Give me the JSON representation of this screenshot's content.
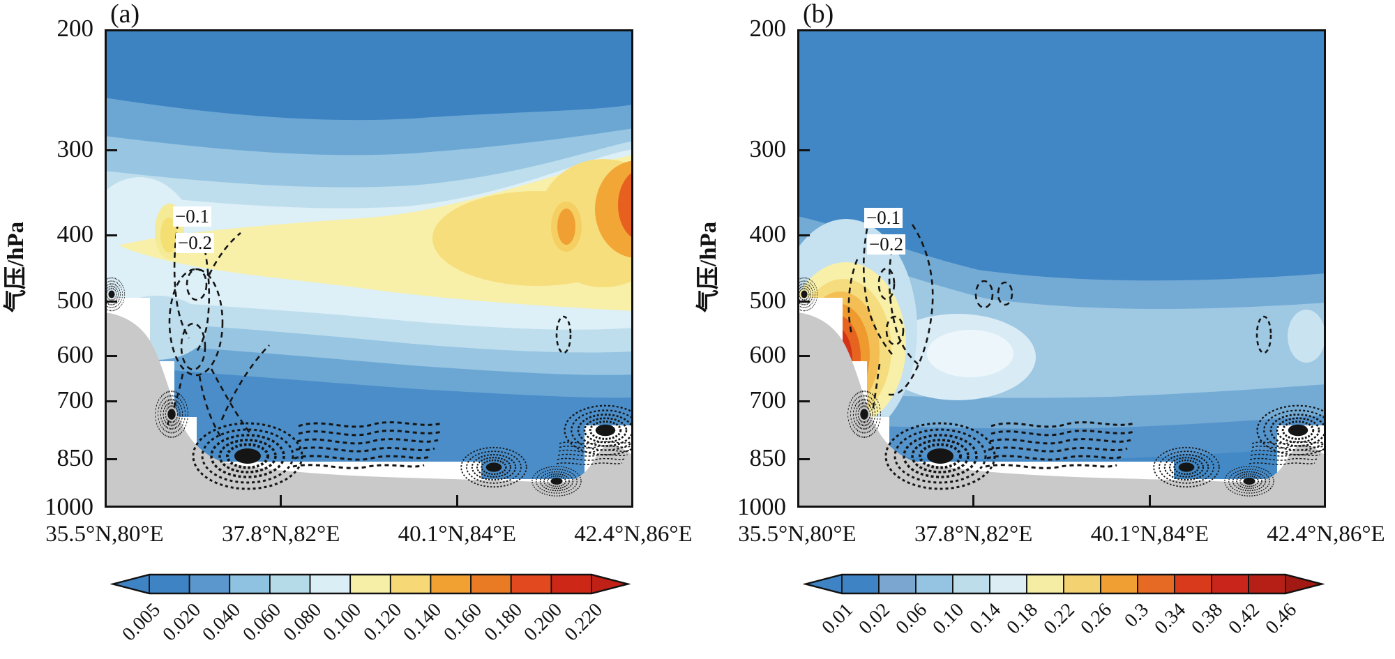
{
  "figure": {
    "type_note": "Two-panel filled-contour vertical cross-sections (pressure vs latitude/longitude) over terrain, each with a double-ended horizontal colorbar",
    "panels": [
      {
        "label": "(a)",
        "y_axis_title": "气压/hPa",
        "y_tick_labels": [
          "200",
          "300",
          "400",
          "500",
          "600",
          "700",
          "850",
          "1000"
        ],
        "x_tick_labels": [
          "35.5°N,80°E",
          "37.8°N,82°E",
          "40.1°N,84°E",
          "42.4°N,86°E"
        ],
        "contour_labels": [
          "−0.1",
          "−0.2"
        ],
        "colorbar": {
          "levels": [
            "0.005",
            "0.020",
            "0.040",
            "0.060",
            "0.080",
            "0.100",
            "0.120",
            "0.140",
            "0.160",
            "0.180",
            "0.200",
            "0.220"
          ],
          "colors": [
            "#3e83c3",
            "#5b97cd",
            "#8fc1e0",
            "#b5dbe8",
            "#daeef5",
            "#f5efa7",
            "#f6d976",
            "#f0a132",
            "#ea7b25",
            "#e2491f",
            "#cd2817"
          ],
          "arrow_left_color": "#3e83c3",
          "arrow_right_color": "#c02015"
        }
      },
      {
        "label": "(b)",
        "y_axis_title": "气压/hPa",
        "y_tick_labels": [
          "200",
          "300",
          "400",
          "500",
          "600",
          "700",
          "850",
          "1000"
        ],
        "x_tick_labels": [
          "35.5°N,80°E",
          "37.8°N,82°E",
          "40.1°N,84°E",
          "42.4°N,86°E"
        ],
        "contour_labels": [
          "−0.1",
          "−0.2"
        ],
        "colorbar": {
          "levels": [
            "0.01",
            "0.02",
            "0.06",
            "0.10",
            "0.14",
            "0.18",
            "0.22",
            "0.26",
            "0.3",
            "0.34",
            "0.38",
            "0.42",
            "0.46"
          ],
          "colors": [
            "#3e83c3",
            "#7aa6d0",
            "#94c4e1",
            "#bcdde9",
            "#dcedf4",
            "#f5eda4",
            "#f3d272",
            "#f0a032",
            "#e76a24",
            "#d93a1b",
            "#c9251a",
            "#b51f15"
          ],
          "arrow_left_color": "#3e83c3",
          "arrow_right_color": "#a21812"
        }
      }
    ]
  },
  "chart_data": [
    {
      "type": "heatmap",
      "subtype": "filled contour vertical cross-section with dashed negative contour lines",
      "title": "(a)",
      "xlabel": "",
      "ylabel": "气压/hPa",
      "y_ticks": [
        200,
        300,
        400,
        500,
        600,
        700,
        850,
        1000
      ],
      "y_scale": "log-pressure, inverted (200 hPa at top, 1000 hPa at bottom)",
      "x_tick_labels": [
        "35.5°N,80°E",
        "37.8°N,82°E",
        "40.1°N,84°E",
        "42.4°N,86°E"
      ],
      "fill_levels": [
        0.005,
        0.02,
        0.04,
        0.06,
        0.08,
        0.1,
        0.12,
        0.14,
        0.16,
        0.18,
        0.2,
        0.22
      ],
      "fill_palette": [
        "#3e83c3",
        "#5b97cd",
        "#8fc1e0",
        "#b5dbe8",
        "#daeef5",
        "#f5efa7",
        "#f6d976",
        "#f0a132",
        "#ea7b25",
        "#e2491f",
        "#cd2817"
      ],
      "colorbar_extended_both_ends": true,
      "dashed_contour_labels": [
        -0.1,
        -0.2
      ],
      "grid": false,
      "legend_position": "horizontal colorbar below panel",
      "features": [
        "Blue shading (0.005–0.04) covers most of the section; darkest blue at top (200–250 hPa) and through the lower troposphere below 500 hPa",
        "Pale-yellow band (0.08–0.12) stretches along ~300–400 hPa across the whole section",
        "Absolute maximum 0.20–0.22 (red-orange) at the right edge near 42.4°N,86°E at ~300–380 hPa",
        "Secondary orange maximum 0.14–0.16 near 41.5°N at ~350 hPa",
        "Weak local maximum ~0.10 near 36°N at ~350–400 hPa",
        "Dashed negative contours labelled −0.1 and −0.2 between ~400 and 600 hPa near 36.5°N",
        "Tightly packed dashed contours hugging terrain near 700–850 hPa around 37.5–39°N and again near 42°N",
        "Gray terrain silhouette rises to ~500 hPa at the left edge, descends to ~900 hPa mid-section, small peak near 42°N; white blocks are masked data beside terrain"
      ]
    },
    {
      "type": "heatmap",
      "subtype": "filled contour vertical cross-section with dashed negative contour lines",
      "title": "(b)",
      "xlabel": "",
      "ylabel": "气压/hPa",
      "y_ticks": [
        200,
        300,
        400,
        500,
        600,
        700,
        850,
        1000
      ],
      "y_scale": "log-pressure, inverted (200 hPa at top, 1000 hPa at bottom)",
      "x_tick_labels": [
        "35.5°N,80°E",
        "37.8°N,82°E",
        "40.1°N,84°E",
        "42.4°N,86°E"
      ],
      "fill_levels": [
        0.01,
        0.02,
        0.06,
        0.1,
        0.14,
        0.18,
        0.22,
        0.26,
        0.3,
        0.34,
        0.38,
        0.42,
        0.46
      ],
      "fill_palette": [
        "#3e83c3",
        "#7aa6d0",
        "#94c4e1",
        "#bcdde9",
        "#dcedf4",
        "#f5eda4",
        "#f3d272",
        "#f0a032",
        "#e76a24",
        "#d93a1b",
        "#c9251a",
        "#b51f15"
      ],
      "colorbar_extended_both_ends": true,
      "dashed_contour_labels": [
        -0.1,
        -0.2
      ],
      "grid": false,
      "legend_position": "horizontal colorbar below panel",
      "features": [
        "Nearly uniform blue 0.01–0.02 above ~400 hPa and over the right two-thirds of the section",
        "Intense maximum >0.46 (dark red) just east of the plateau slope near 35.8°N at 500–600 hPa, with concentric rings 0.06→0.46 around it",
        "Pale minimum region (0.06–0.10) immediately east of the maximum at 500–600 hPa",
        "Light-blue band 0.02–0.06 along 400–520 hPa and a pale patch near 42.4°N at ~500 hPa",
        "Dashed negative contours labelled −0.1 and −0.2 between ~400 and 600 hPa near 36.5–37°N",
        "Tightly packed dashed contours along terrain near 700–850 hPa around 37.5–39°N and near 42°N",
        "Same gray terrain silhouette and white masked blocks as panel (a)"
      ]
    }
  ]
}
